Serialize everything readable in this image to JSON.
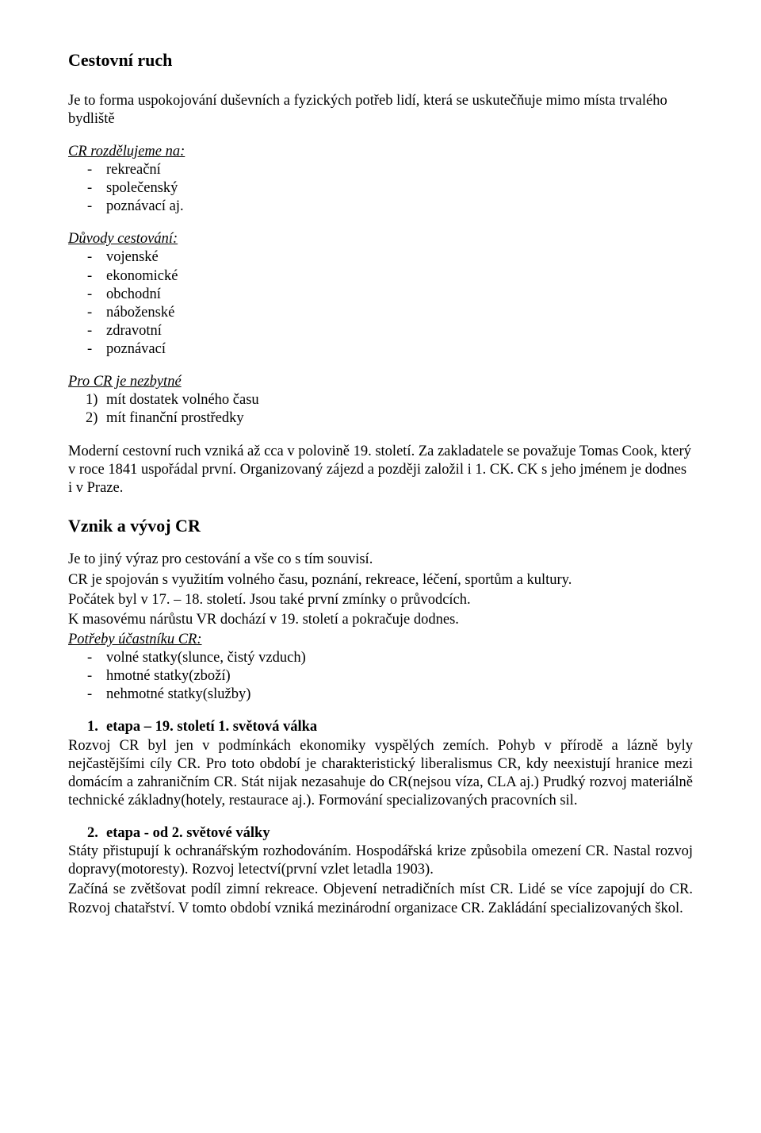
{
  "title": "Cestovní ruch",
  "intro": "Je to forma uspokojování duševních a fyzických potřeb lidí, která se uskutečňuje mimo místa trvalého bydliště",
  "divide_head": "CR rozdělujeme na:",
  "divide_items": [
    "rekreační",
    "společenský",
    "poznávací aj."
  ],
  "reasons_head": "Důvody cestování:",
  "reasons_items": [
    "vojenské",
    "ekonomické",
    "obchodní",
    "náboženské",
    "zdravotní",
    "poznávací"
  ],
  "need_head": "Pro CR je nezbytné",
  "need_items": [
    "mít dostatek volného času",
    "mít finanční prostředky"
  ],
  "history_para": "Moderní cestovní ruch vzniká až cca v polovině 19. století. Za zakladatele se považuje Tomas Cook, který v roce 1841 uspořádal první. Organizovaný zájezd a později založil i 1. CK. CK s jeho jménem je dodnes i v Praze.",
  "section2": "Vznik a vývoj CR",
  "s2_p1": "Je to jiný výraz pro cestování a vše co s tím souvisí.",
  "s2_p2": "CR je spojován s využitím volného času, poznání, rekreace, léčení, sportům a kultury.",
  "s2_p3": "Počátek byl v 17. – 18. století. Jsou také první zmínky o průvodcích.",
  "s2_p4": "K masovému nárůstu VR dochází v 19. století a pokračuje dodnes.",
  "needs2_head": "Potřeby účastníku CR:",
  "needs2_items": [
    "volné statky(slunce, čistý vzduch)",
    "hmotné statky(zboží)",
    "nehmotné statky(služby)"
  ],
  "etapa1_num": "1.",
  "etapa1_head": "etapa – 19. století  1. světová válka",
  "etapa1_body": "Rozvoj CR byl jen v podmínkách ekonomiky vyspělých zemích. Pohyb v přírodě a lázně byly nejčastějšími cíly CR. Pro toto období je charakteristický liberalismus CR, kdy neexistují hranice mezi domácím a zahraničním CR. Stát nijak nezasahuje do CR(nejsou víza, CLA aj.) Prudký rozvoj materiálně technické základny(hotely, restaurace aj.). Formování specializovaných pracovních sil.",
  "etapa2_num": "2.",
  "etapa2_head": "etapa - od 2. světové války",
  "etapa2_body": "Státy přistupují k ochranářským rozhodováním. Hospodářská krize způsobila omezení CR. Nastal rozvoj dopravy(motoresty). Rozvoj letectví(první vzlet letadla 1903).",
  "etapa2_body2": "Začíná se zvětšovat podíl zimní rekreace. Objevení netradičních míst CR. Lidé se více zapojují do CR. Rozvoj chatařství. V tomto období vzniká mezinárodní organizace CR. Zakládání specializovaných škol."
}
